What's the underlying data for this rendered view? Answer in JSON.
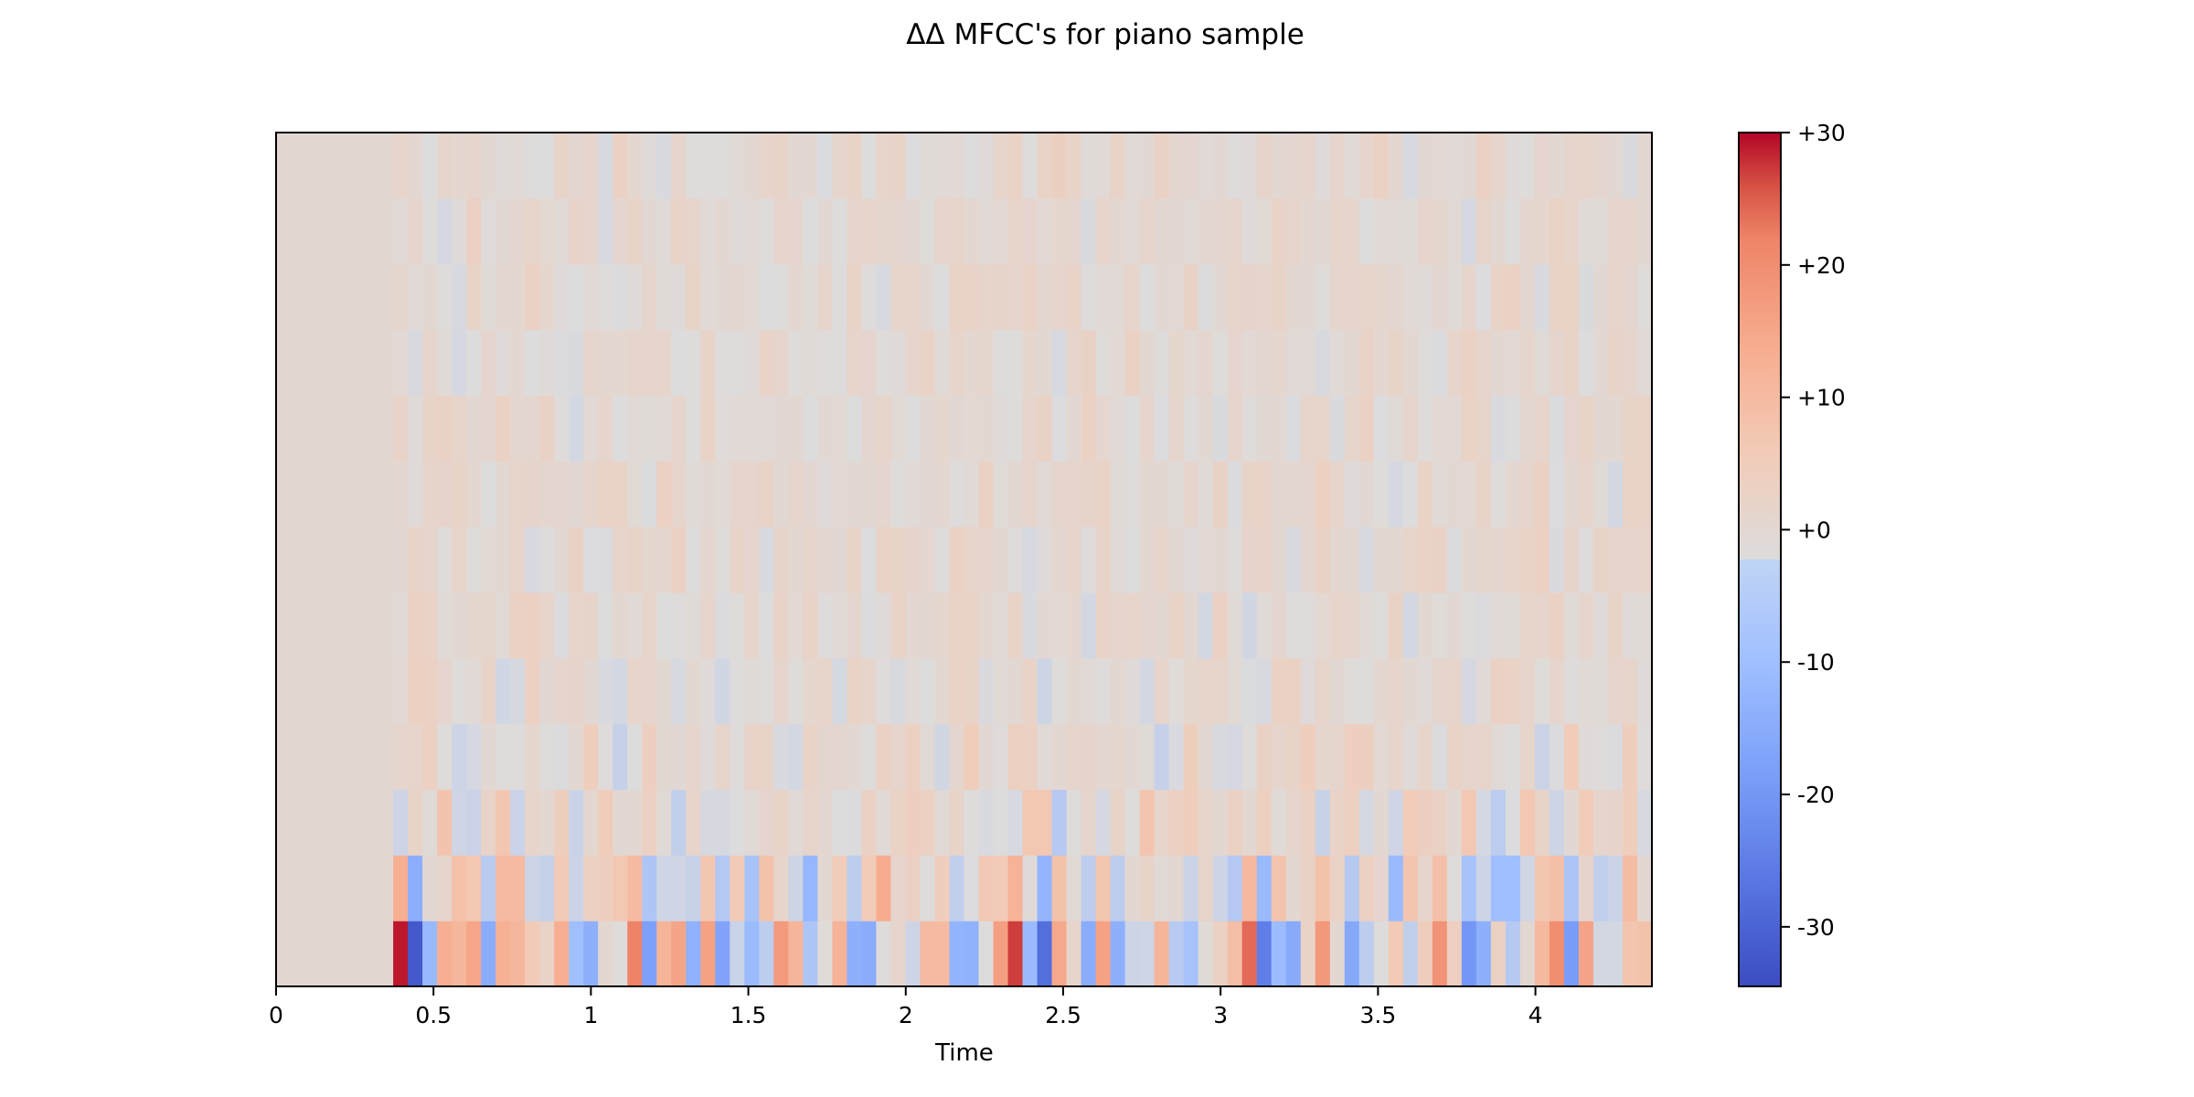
{
  "chart_data": {
    "type": "heatmap",
    "title": "ΔΔ MFCC's for piano sample",
    "xlabel": "Time",
    "ylabel": "",
    "xlim": [
      0,
      4.37
    ],
    "x_ticks": [
      0,
      0.5,
      1,
      1.5,
      2,
      2.5,
      3,
      3.5,
      4
    ],
    "x_tick_labels": [
      "0",
      "0.5",
      "1",
      "1.5",
      "2",
      "2.5",
      "3",
      "3.5",
      "4"
    ],
    "n_coefficients": 13,
    "n_frames": 94,
    "onset_time": 0.37,
    "colormap": "coolwarm",
    "colorbar": {
      "vmin": -34.5,
      "vmax": 30,
      "ticks": [
        30,
        20,
        10,
        0,
        -10,
        -20,
        -30
      ],
      "tick_labels": [
        "+30",
        "+20",
        "+10",
        "+0",
        "-10",
        "-20",
        "-30"
      ]
    },
    "coefficient_amplitudes": [
      10,
      7,
      4,
      2.8,
      2.2,
      2,
      2,
      1.9,
      1.8,
      1.7,
      1.7,
      1.7,
      1.8
    ],
    "strong_events": [
      {
        "time": 0.39,
        "value": 29
      },
      {
        "time": 0.44,
        "value": -32
      },
      {
        "time": 0.64,
        "value": 15
      },
      {
        "time": 0.69,
        "value": -15
      },
      {
        "time": 0.89,
        "value": 13
      },
      {
        "time": 0.94,
        "value": -10
      },
      {
        "time": 1.14,
        "value": 22
      },
      {
        "time": 1.19,
        "value": -18
      },
      {
        "time": 1.38,
        "value": 16
      },
      {
        "time": 1.43,
        "value": -17
      },
      {
        "time": 1.78,
        "value": 12
      },
      {
        "time": 1.83,
        "value": -14
      },
      {
        "time": 2.13,
        "value": 10
      },
      {
        "time": 2.18,
        "value": -13
      },
      {
        "time": 2.36,
        "value": 27
      },
      {
        "time": 2.42,
        "value": -28
      },
      {
        "time": 2.61,
        "value": 16
      },
      {
        "time": 2.66,
        "value": -14
      },
      {
        "time": 3.09,
        "value": 24
      },
      {
        "time": 3.15,
        "value": -25
      },
      {
        "time": 3.34,
        "value": 18
      },
      {
        "time": 3.4,
        "value": -16
      },
      {
        "time": 3.71,
        "value": 19
      },
      {
        "time": 3.77,
        "value": -20
      },
      {
        "time": 4.07,
        "value": 20
      },
      {
        "time": 4.13,
        "value": -19
      }
    ]
  }
}
